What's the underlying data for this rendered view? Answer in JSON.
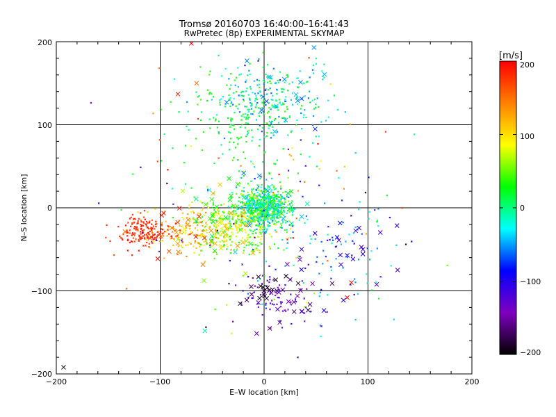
{
  "chart_data": {
    "type": "scatter",
    "title": "Tromsø 20160703 16:40:00–16:41:43",
    "subtitle": "RwPretec (8p) EXPERIMENTAL SKYMAP",
    "xlabel": "E–W location [km]",
    "ylabel": "N–S location [km]",
    "xlim": [
      -200,
      200
    ],
    "ylim": [
      -200,
      200
    ],
    "xticks": [
      -200,
      -100,
      0,
      100,
      200
    ],
    "yticks": [
      -200,
      -100,
      0,
      100,
      200
    ],
    "xtick_labels": [
      "−200",
      "−100",
      "0",
      "100",
      "200"
    ],
    "ytick_labels": [
      "−200",
      "−100",
      "0",
      "100",
      "200"
    ],
    "grid_lines": [
      -100,
      0,
      100
    ],
    "colorbar": {
      "label": "[m/s]",
      "range": [
        -200,
        200
      ],
      "ticks": [
        200,
        100,
        0,
        -100,
        -200
      ],
      "tick_labels": [
        "200",
        "100",
        "0",
        "−100",
        "−200"
      ],
      "colors": [
        "#000000",
        "#8000c0",
        "#0000ff",
        "#00ffff",
        "#00ff00",
        "#ffff00",
        "#ff8000",
        "#ff0000"
      ]
    },
    "point_groups": [
      {
        "cx": 0,
        "cy": 0,
        "sx": 12,
        "sy": 12,
        "n": 700,
        "v": [
          -60,
          70
        ],
        "marker": "dot"
      },
      {
        "cx": 5,
        "cy": 130,
        "sx": 30,
        "sy": 25,
        "n": 260,
        "v": [
          -70,
          40
        ],
        "marker": "dot"
      },
      {
        "cx": -25,
        "cy": 100,
        "sx": 25,
        "sy": 30,
        "n": 120,
        "v": [
          0,
          40
        ],
        "marker": "dot"
      },
      {
        "cx": -30,
        "cy": -20,
        "sx": 22,
        "sy": 18,
        "n": 320,
        "v": [
          20,
          110
        ],
        "marker": "dot"
      },
      {
        "cx": -75,
        "cy": -30,
        "sx": 18,
        "sy": 15,
        "n": 130,
        "v": [
          90,
          150
        ],
        "marker": "dot"
      },
      {
        "cx": -115,
        "cy": -30,
        "sx": 12,
        "sy": 10,
        "n": 180,
        "v": [
          160,
          200
        ],
        "marker": "dot"
      },
      {
        "cx": 15,
        "cy": -110,
        "sx": 20,
        "sy": 15,
        "n": 70,
        "v": [
          -160,
          -100
        ],
        "marker": "dot"
      },
      {
        "cx": 70,
        "cy": -40,
        "sx": 35,
        "sy": 40,
        "n": 90,
        "v": [
          -100,
          0
        ],
        "marker": "dot"
      },
      {
        "cx": 0,
        "cy": 0,
        "sx": 70,
        "sy": 80,
        "n": 150,
        "v": [
          -200,
          200
        ],
        "marker": "dot"
      },
      {
        "cx": -40,
        "cy": -25,
        "sx": 22,
        "sy": 22,
        "n": 45,
        "v": [
          10,
          130
        ],
        "marker": "x"
      },
      {
        "cx": -85,
        "cy": -25,
        "sx": 20,
        "sy": 15,
        "n": 20,
        "v": [
          130,
          200
        ],
        "marker": "x"
      },
      {
        "cx": 10,
        "cy": -105,
        "sx": 20,
        "sy": 14,
        "n": 40,
        "v": [
          -200,
          -110
        ],
        "marker": "x"
      },
      {
        "cx": 75,
        "cy": -55,
        "sx": 25,
        "sy": 25,
        "n": 22,
        "v": [
          -130,
          -80
        ],
        "marker": "x"
      },
      {
        "cx": 5,
        "cy": 130,
        "sx": 25,
        "sy": 20,
        "n": 18,
        "v": [
          -80,
          -40
        ],
        "marker": "x"
      },
      {
        "cx": 0,
        "cy": 10,
        "sx": 25,
        "sy": 25,
        "n": 30,
        "v": [
          -60,
          40
        ],
        "marker": "x"
      }
    ],
    "points": [
      {
        "x": -193,
        "y": -192,
        "v": -200,
        "marker": "x"
      },
      {
        "x": -70,
        "y": 198,
        "v": 200,
        "marker": "x"
      },
      {
        "x": -57,
        "y": -148,
        "v": -10,
        "marker": "x"
      },
      {
        "x": 80,
        "y": -108,
        "v": 200,
        "marker": "x"
      },
      {
        "x": 84,
        "y": -90,
        "v": 200,
        "marker": "x"
      },
      {
        "x": 48,
        "y": 193,
        "v": -50,
        "marker": "x"
      },
      {
        "x": -83,
        "y": 137,
        "v": 180,
        "marker": "x"
      },
      {
        "x": -65,
        "y": 150,
        "v": 150,
        "marker": "x"
      }
    ]
  }
}
